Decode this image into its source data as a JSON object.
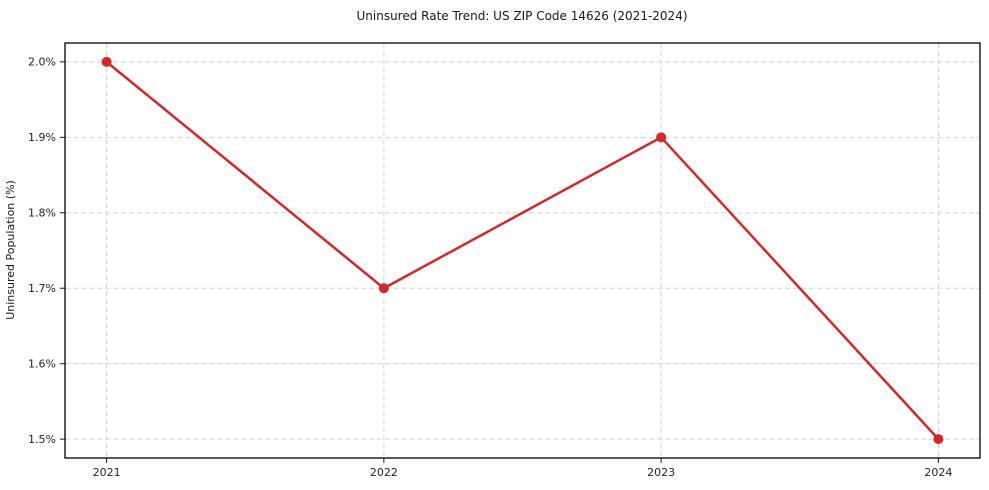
{
  "chart_data": {
    "type": "line",
    "title": "Uninsured Rate Trend: US ZIP Code 14626 (2021-2024)",
    "xlabel": "",
    "ylabel": "Uninsured Population (%)",
    "categories": [
      2021,
      2022,
      2023,
      2024
    ],
    "series": [
      {
        "name": "Uninsured Rate",
        "values": [
          2.0,
          1.7,
          1.9,
          1.5
        ]
      }
    ],
    "xticks": [
      2021,
      2022,
      2023,
      2024
    ],
    "yticks": [
      1.5,
      1.6,
      1.7,
      1.8,
      1.9,
      2.0
    ],
    "ytick_labels": [
      "1.5%",
      "1.6%",
      "1.7%",
      "1.8%",
      "1.9%",
      "2.0%"
    ],
    "xlim": [
      2020.85,
      2024.15
    ],
    "ylim": [
      1.475,
      2.025
    ],
    "grid": true,
    "legend": false,
    "line_color": "#d62728",
    "marker_color": "#d62728",
    "grid_color": "#d3d3d3",
    "background_color": "#ffffff"
  }
}
